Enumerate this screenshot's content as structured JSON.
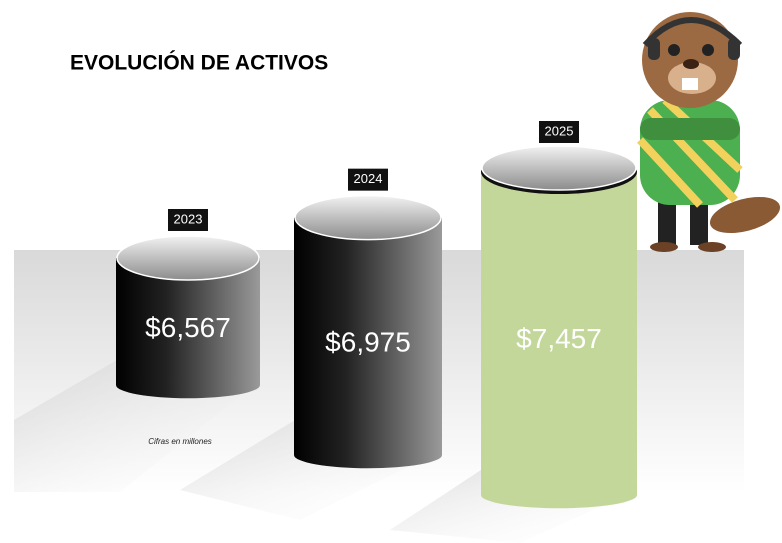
{
  "chart_data": {
    "type": "cylinder",
    "title": "EVOLUCIÓN DE ACTIVOS",
    "note": "Cifras en millones",
    "categories": [
      "2023",
      "2024",
      "2025"
    ],
    "values": [
      6567,
      6975,
      7457
    ],
    "value_labels": [
      "$6,567",
      "$6,975",
      "$7,457"
    ],
    "colors": [
      "#1a1a1a",
      "#1a1a1a",
      "#c4d79b"
    ]
  }
}
